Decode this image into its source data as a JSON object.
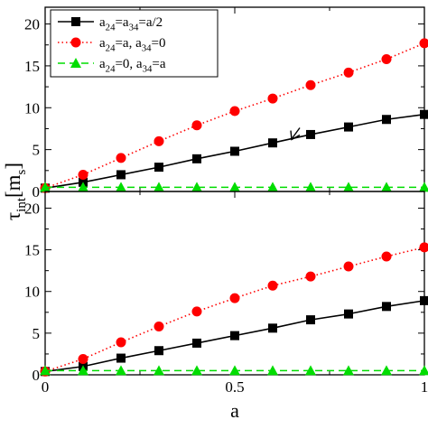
{
  "chart_data": [
    {
      "type": "line",
      "panel": "top",
      "xlim": [
        0,
        1
      ],
      "ylim": [
        0,
        22
      ],
      "yticks": [
        0,
        5,
        10,
        15,
        20
      ],
      "grid": false,
      "legend_position": "top-left",
      "legend": [
        {
          "main": "a",
          "parts": [
            [
              "a",
              ""
            ],
            [
              "24",
              "sub"
            ],
            [
              "=a",
              ""
            ],
            [
              "34",
              "sub"
            ],
            [
              "=a/2",
              ""
            ]
          ]
        },
        {
          "main": "a",
          "parts": [
            [
              "a",
              ""
            ],
            [
              "24",
              "sub"
            ],
            [
              "=a, a",
              ""
            ],
            [
              "34",
              "sub"
            ],
            [
              "=0",
              ""
            ]
          ]
        },
        {
          "main": "a",
          "parts": [
            [
              "a",
              ""
            ],
            [
              "24",
              "sub"
            ],
            [
              "=0, a",
              ""
            ],
            [
              "34",
              "sub"
            ],
            [
              "=a",
              ""
            ]
          ]
        }
      ],
      "series": [
        {
          "marker": "square",
          "line": "solid",
          "color": "#000000",
          "x": [
            0,
            0.1,
            0.2,
            0.3,
            0.4,
            0.5,
            0.6,
            0.7,
            0.8,
            0.9,
            1.0
          ],
          "y": [
            0.4,
            1.1,
            2.0,
            2.9,
            3.9,
            4.8,
            5.8,
            6.8,
            7.7,
            8.6,
            9.2
          ]
        },
        {
          "marker": "circle",
          "line": "dotted",
          "color": "#ff0000",
          "x": [
            0,
            0.1,
            0.2,
            0.3,
            0.4,
            0.5,
            0.6,
            0.7,
            0.8,
            0.9,
            1.0
          ],
          "y": [
            0.4,
            2.0,
            4.0,
            6.0,
            7.9,
            9.6,
            11.1,
            12.7,
            14.2,
            15.8,
            17.7
          ]
        },
        {
          "marker": "triangle",
          "line": "dashed",
          "color": "#00dd00",
          "x": [
            0,
            0.1,
            0.2,
            0.3,
            0.4,
            0.5,
            0.6,
            0.7,
            0.8,
            0.9,
            1.0
          ],
          "y": [
            0.5,
            0.5,
            0.5,
            0.5,
            0.5,
            0.5,
            0.5,
            0.5,
            0.5,
            0.5,
            0.5
          ]
        }
      ],
      "annotation": {
        "type": "arrow",
        "x": 0.65,
        "y": 6.2
      }
    },
    {
      "type": "line",
      "panel": "bottom",
      "xlim": [
        0,
        1
      ],
      "ylim": [
        0,
        22
      ],
      "yticks": [
        0,
        5,
        10,
        15,
        20
      ],
      "xticks": [
        "0",
        "0.5",
        "1"
      ],
      "xlabel": "a",
      "ylabel": {
        "main": "τ",
        "sub": "int",
        "bracket_main": "m",
        "bracket_sub": "s"
      },
      "grid": false,
      "series": [
        {
          "marker": "square",
          "line": "solid",
          "color": "#000000",
          "x": [
            0,
            0.1,
            0.2,
            0.3,
            0.4,
            0.5,
            0.6,
            0.7,
            0.8,
            0.9,
            1.0
          ],
          "y": [
            0.4,
            1.0,
            2.0,
            2.9,
            3.8,
            4.7,
            5.6,
            6.6,
            7.3,
            8.2,
            8.9
          ]
        },
        {
          "marker": "circle",
          "line": "dotted",
          "color": "#ff0000",
          "x": [
            0,
            0.1,
            0.2,
            0.3,
            0.4,
            0.5,
            0.6,
            0.7,
            0.8,
            0.9,
            1.0
          ],
          "y": [
            0.4,
            1.9,
            3.9,
            5.8,
            7.6,
            9.2,
            10.7,
            11.8,
            13.0,
            14.2,
            15.3
          ]
        },
        {
          "marker": "triangle",
          "line": "dashed",
          "color": "#00dd00",
          "x": [
            0,
            0.1,
            0.2,
            0.3,
            0.4,
            0.5,
            0.6,
            0.7,
            0.8,
            0.9,
            1.0
          ],
          "y": [
            0.5,
            0.5,
            0.5,
            0.5,
            0.5,
            0.5,
            0.5,
            0.5,
            0.5,
            0.5,
            0.5
          ]
        }
      ]
    }
  ]
}
